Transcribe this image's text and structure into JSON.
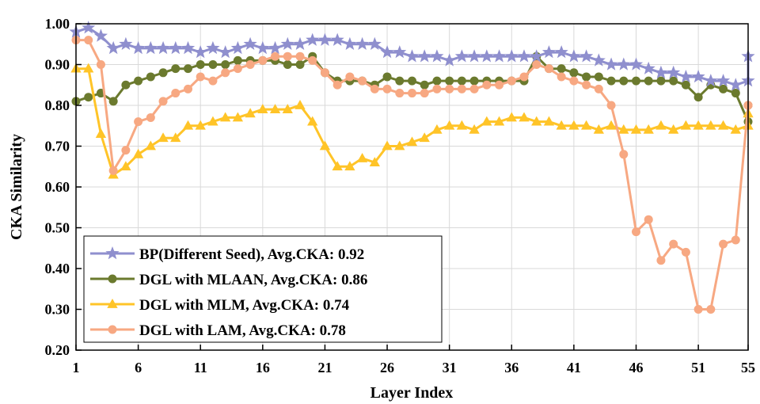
{
  "chart_data": {
    "type": "line",
    "xlabel": "Layer Index",
    "ylabel": "CKA Similarity",
    "xlim": [
      1,
      55
    ],
    "ylim": [
      0.2,
      1.0
    ],
    "x_ticks": [
      1,
      6,
      11,
      16,
      21,
      26,
      31,
      36,
      41,
      46,
      51,
      55
    ],
    "y_ticks": [
      "0.20",
      "0.30",
      "0.40",
      "0.50",
      "0.60",
      "0.70",
      "0.80",
      "0.90",
      "1.00"
    ],
    "legend_position": "bottom-left",
    "series": [
      {
        "name": "BP(Different Seed), Avg.CKA: 0.92",
        "color": "#8f8fce",
        "marker": "star",
        "values": [
          0.98,
          0.99,
          0.97,
          0.94,
          0.95,
          0.94,
          0.94,
          0.94,
          0.94,
          0.94,
          0.93,
          0.94,
          0.93,
          0.94,
          0.95,
          0.94,
          0.94,
          0.95,
          0.95,
          0.96,
          0.96,
          0.96,
          0.95,
          0.95,
          0.95,
          0.93,
          0.93,
          0.92,
          0.92,
          0.92,
          0.91,
          0.92,
          0.92,
          0.92,
          0.92,
          0.92,
          0.92,
          0.92,
          0.93,
          0.93,
          0.92,
          0.92,
          0.91,
          0.9,
          0.9,
          0.9,
          0.89,
          0.88,
          0.88,
          0.87,
          0.87,
          0.86,
          0.86,
          0.85,
          0.86,
          0.92
        ]
      },
      {
        "name": "DGL with MLAAN, Avg.CKA: 0.86",
        "color": "#6b7a2e",
        "marker": "circle",
        "values": [
          0.81,
          0.82,
          0.83,
          0.81,
          0.85,
          0.86,
          0.87,
          0.88,
          0.89,
          0.89,
          0.9,
          0.9,
          0.9,
          0.91,
          0.91,
          0.91,
          0.91,
          0.9,
          0.9,
          0.92,
          0.88,
          0.86,
          0.86,
          0.86,
          0.85,
          0.87,
          0.86,
          0.86,
          0.85,
          0.86,
          0.86,
          0.86,
          0.86,
          0.86,
          0.86,
          0.86,
          0.86,
          0.92,
          0.89,
          0.89,
          0.88,
          0.87,
          0.87,
          0.86,
          0.86,
          0.86,
          0.86,
          0.86,
          0.86,
          0.85,
          0.82,
          0.85,
          0.84,
          0.83,
          0.76,
          0.8
        ]
      },
      {
        "name": "DGL with MLM, Avg.CKA: 0.74",
        "color": "#ffc428",
        "marker": "triangle",
        "values": [
          0.89,
          0.89,
          0.73,
          0.63,
          0.65,
          0.68,
          0.7,
          0.72,
          0.72,
          0.75,
          0.75,
          0.76,
          0.77,
          0.77,
          0.78,
          0.79,
          0.79,
          0.79,
          0.8,
          0.76,
          0.7,
          0.65,
          0.65,
          0.67,
          0.66,
          0.7,
          0.7,
          0.71,
          0.72,
          0.74,
          0.75,
          0.75,
          0.74,
          0.76,
          0.76,
          0.77,
          0.77,
          0.76,
          0.76,
          0.75,
          0.75,
          0.75,
          0.74,
          0.75,
          0.74,
          0.74,
          0.74,
          0.75,
          0.74,
          0.75,
          0.75,
          0.75,
          0.75,
          0.74,
          0.75,
          0.78
        ]
      },
      {
        "name": "DGL with LAM, Avg.CKA: 0.78",
        "color": "#f7a882",
        "marker": "circle",
        "values": [
          0.96,
          0.96,
          0.9,
          0.64,
          0.69,
          0.76,
          0.77,
          0.81,
          0.83,
          0.84,
          0.87,
          0.86,
          0.88,
          0.89,
          0.9,
          0.91,
          0.92,
          0.92,
          0.92,
          0.91,
          0.88,
          0.85,
          0.87,
          0.86,
          0.84,
          0.84,
          0.83,
          0.83,
          0.83,
          0.84,
          0.84,
          0.84,
          0.84,
          0.85,
          0.85,
          0.86,
          0.87,
          0.9,
          0.89,
          0.87,
          0.86,
          0.85,
          0.84,
          0.8,
          0.68,
          0.49,
          0.52,
          0.42,
          0.46,
          0.44,
          0.3,
          0.3,
          0.46,
          0.47,
          0.8,
          0.8
        ]
      }
    ]
  }
}
